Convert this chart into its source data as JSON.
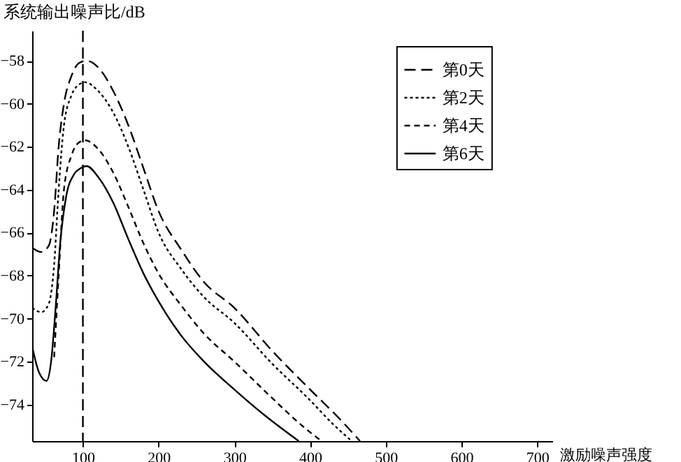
{
  "chart_data": {
    "type": "line",
    "xlabel": "激励噪声强度",
    "ylabel": "系统输出噪声比/dB",
    "xlim": [
      33,
      720
    ],
    "ylim": [
      -75.7,
      -56.6
    ],
    "xticks": [
      100,
      200,
      300,
      400,
      500,
      600,
      700
    ],
    "yticks": [
      -58,
      -60,
      -62,
      -64,
      -66,
      -68,
      -70,
      -72,
      -74
    ],
    "grid": false,
    "legend": "top right",
    "marker": "none",
    "ref_lines": [
      {
        "axis": "x",
        "value": 100,
        "color": "#000000",
        "line_style": "dashed"
      }
    ],
    "series": [
      {
        "name": "第0天",
        "color": "#000000",
        "line_style": "dashed",
        "x": [
          33,
          45,
          55,
          62,
          68,
          75,
          85,
          95,
          105,
          120,
          140,
          160,
          180,
          200,
          230,
          260,
          300,
          350,
          400,
          440,
          466
        ],
        "values": [
          -66.7,
          -66.9,
          -66.6,
          -65,
          -62,
          -60,
          -58.7,
          -58.1,
          -58,
          -58.3,
          -59.4,
          -61,
          -63,
          -65,
          -66.8,
          -68.3,
          -69.5,
          -71.5,
          -73.3,
          -74.7,
          -75.7
        ]
      },
      {
        "name": "第2天",
        "color": "#000000",
        "line_style": "dotted",
        "x": [
          33,
          45,
          55,
          62,
          68,
          75,
          85,
          95,
          103,
          120,
          140,
          160,
          180,
          200,
          230,
          260,
          300,
          350,
          400,
          430,
          455
        ],
        "values": [
          -69.5,
          -69.7,
          -69.3,
          -67.5,
          -64,
          -61,
          -59.6,
          -59.1,
          -59,
          -59.4,
          -60.4,
          -62,
          -64,
          -66,
          -67.7,
          -69,
          -70.2,
          -72.1,
          -73.8,
          -74.9,
          -75.7
        ]
      },
      {
        "name": "第4天",
        "color": "#000000",
        "line_style": "dashed",
        "x": [
          62,
          68,
          75,
          85,
          95,
          103,
          120,
          140,
          160,
          180,
          200,
          230,
          260,
          300,
          350,
          390,
          415
        ],
        "values": [
          -71.8,
          -68,
          -64,
          -62.4,
          -61.8,
          -61.7,
          -62.1,
          -63.2,
          -64.8,
          -66.5,
          -67.9,
          -69.4,
          -70.7,
          -72,
          -73.7,
          -75,
          -75.7
        ]
      },
      {
        "name": "第6天",
        "color": "#000000",
        "line_style": "solid",
        "x": [
          33,
          42,
          52,
          58,
          64,
          70,
          78,
          88,
          97,
          105,
          120,
          140,
          160,
          180,
          200,
          230,
          260,
          300,
          340,
          385
        ],
        "values": [
          -71.3,
          -72.5,
          -72.9,
          -72,
          -69.5,
          -66.5,
          -64.3,
          -63.3,
          -63,
          -62.9,
          -63.4,
          -64.6,
          -66.3,
          -67.9,
          -69.2,
          -70.8,
          -72,
          -73.3,
          -74.5,
          -75.7
        ]
      }
    ]
  }
}
